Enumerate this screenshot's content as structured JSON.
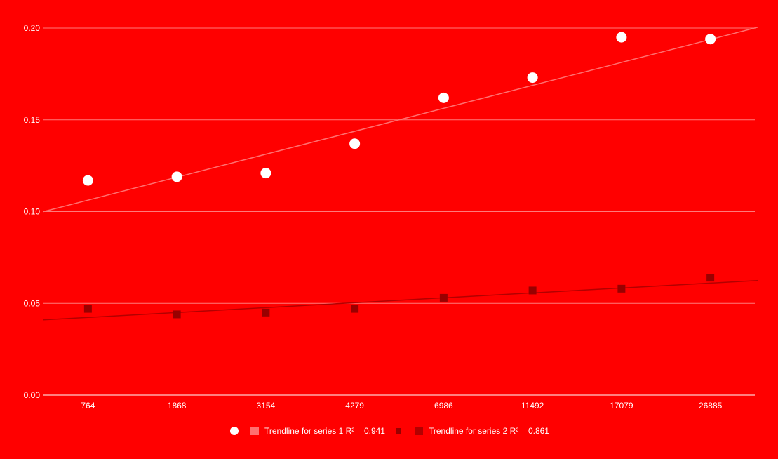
{
  "colors": {
    "background": "#ff0000",
    "series1_point": "#ffffff",
    "series1_trend": "#ff7070",
    "series2_point": "#990000",
    "series2_trend": "#b30000",
    "grid": "#ff7a7a",
    "text": "#ffffff"
  },
  "chart_data": {
    "type": "scatter",
    "title": "",
    "xlabel": "",
    "ylabel": "",
    "categories": [
      "764",
      "1868",
      "3154",
      "4279",
      "6986",
      "11492",
      "17079",
      "26885"
    ],
    "ylim": [
      0,
      0.2
    ],
    "yticks": [
      "0.00",
      "0.05",
      "0.10",
      "0.15",
      "0.20"
    ],
    "grid": true,
    "legend_position": "bottom",
    "series": [
      {
        "marker": "circle",
        "values": [
          0.117,
          0.119,
          0.121,
          0.137,
          0.162,
          0.173,
          0.195,
          0.194
        ],
        "trendline": {
          "label": "Trendline for series 1 R² = 0.941",
          "start": 0.1,
          "end": 0.203
        }
      },
      {
        "marker": "square",
        "values": [
          0.047,
          0.044,
          0.045,
          0.047,
          0.053,
          0.057,
          0.058,
          0.064
        ],
        "trendline": {
          "label": "Trendline for series 2 R² = 0.861",
          "start": 0.041,
          "end": 0.063
        }
      }
    ]
  }
}
